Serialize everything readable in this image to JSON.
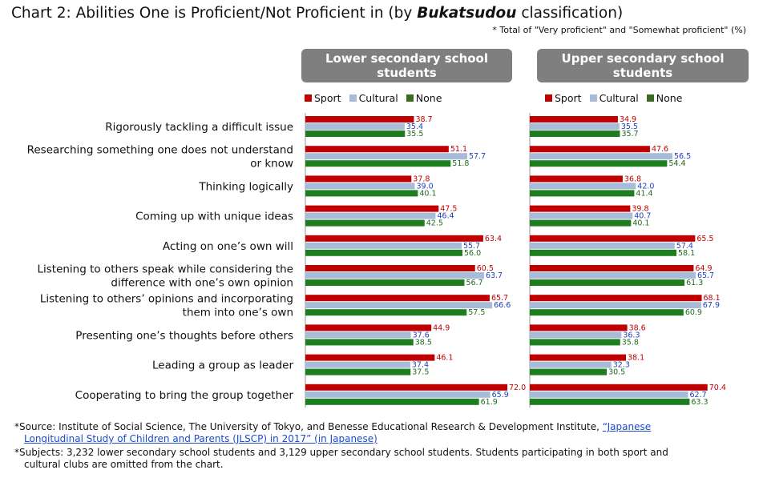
{
  "title_prefix": "Chart 2: Abilities One is Proficient/Not Proficient in (by ",
  "title_italic": "Bukatsudou",
  "title_suffix": " classification)",
  "note": "* Total of \"Very proficient\" and \"Somewhat proficient\" (%)",
  "colors": {
    "Sport": "#c00000",
    "Cultural": "#a6bcd8",
    "None": "#1e7d1e",
    "label_Sport": "#c00000",
    "label_Cultural": "#1f3fbf",
    "label_None": "#1e6b1e",
    "header_bg": "#7f7f7f"
  },
  "panels": [
    {
      "title_line1": "Lower secondary school",
      "title_line2": "students"
    },
    {
      "title_line1": "Upper secondary school",
      "title_line2": "students"
    }
  ],
  "legend": [
    "Sport",
    "Cultural",
    "None"
  ],
  "footer": {
    "source_prefix": "*Source: Institute of Social Science, The University  of Tokyo, and Benesse Educational Research & Development Institute, ",
    "source_link_1": "“Japanese",
    "source_link_2": "Longitudinal Study of Children and Parents (JLSCP) in 2017” (in Japanese)",
    "subjects_1": "*Subjects: 3,232 lower secondary school students and 3,129 upper secondary school students. Students participating in both sport and",
    "subjects_2": "cultural clubs are omitted from the chart."
  },
  "chart_data": [
    {
      "type": "bar",
      "title": "Lower secondary school students",
      "categories": [
        [
          "Rigorously tackling a difficult issue"
        ],
        [
          "Researching something one does not understand",
          "or know"
        ],
        [
          "Thinking logically"
        ],
        [
          "Coming up with unique ideas"
        ],
        [
          "Acting on one’s own will"
        ],
        [
          "Listening to others speak while considering the",
          "difference with one’s own opinion"
        ],
        [
          "Listening to others’ opinions and incorporating",
          "them into one’s own"
        ],
        [
          "Presenting one’s thoughts before others"
        ],
        [
          "Leading a group as leader"
        ],
        [
          "Cooperating to bring the group together"
        ]
      ],
      "series": [
        {
          "name": "Sport",
          "values": [
            38.7,
            51.1,
            37.8,
            47.5,
            63.4,
            60.5,
            65.7,
            44.9,
            46.1,
            72.0
          ]
        },
        {
          "name": "Cultural",
          "values": [
            35.4,
            57.7,
            39.0,
            46.4,
            55.7,
            63.7,
            66.6,
            37.6,
            37.4,
            65.9
          ]
        },
        {
          "name": "None",
          "values": [
            35.5,
            51.8,
            40.1,
            42.5,
            56.0,
            56.7,
            57.5,
            38.5,
            37.5,
            61.9
          ]
        }
      ]
    },
    {
      "type": "bar",
      "title": "Upper secondary school students",
      "series": [
        {
          "name": "Sport",
          "values": [
            34.9,
            47.6,
            36.8,
            39.8,
            65.5,
            64.9,
            68.1,
            38.6,
            38.1,
            70.4
          ]
        },
        {
          "name": "Cultural",
          "values": [
            35.5,
            56.5,
            42.0,
            40.7,
            57.4,
            65.7,
            67.9,
            36.3,
            32.3,
            62.7
          ]
        },
        {
          "name": "None",
          "values": [
            35.7,
            54.4,
            41.4,
            40.1,
            58.1,
            61.3,
            60.9,
            35.8,
            30.5,
            63.3
          ]
        }
      ]
    }
  ]
}
